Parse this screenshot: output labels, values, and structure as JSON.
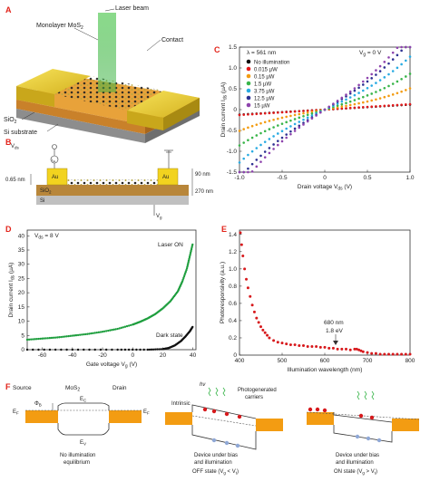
{
  "panels": {
    "A": {
      "label": "A",
      "annotations": {
        "laser": "Laser beam",
        "mos2": "Monolayer MoS",
        "mos2_sub": "2",
        "contact": "Contact",
        "sio2": "SiO",
        "sio2_sub": "2",
        "si": "Si substrate"
      }
    },
    "B": {
      "label": "B",
      "vds": "V",
      "vds_sub": "ds",
      "ids": "I",
      "ids_sub": "ds",
      "au_left": "Au",
      "au_right": "Au",
      "sio2": "SiO",
      "sio2_sub": "2",
      "si": "Si",
      "dim_065": "0.65 nm",
      "dim_90": "90 nm",
      "dim_270": "270 nm",
      "vg": "V",
      "vg_sub": "g"
    },
    "C": {
      "label": "C",
      "condition_lambda": "λ = 561 nm",
      "condition_vg": "V",
      "condition_vg_sub": "g",
      "condition_vg_val": " = 0 V"
    },
    "D": {
      "label": "D",
      "condition": "V",
      "condition_sub": "ds",
      "condition_val": " = 8 V",
      "laser_on": "Laser ON",
      "dark": "Dark state"
    },
    "E": {
      "label": "E",
      "peak_line1": "680 nm",
      "peak_line2": "1.8 eV"
    },
    "F": {
      "label": "F",
      "source": "Source",
      "mos2": "MoS",
      "mos2_sub": "2",
      "drain": "Drain",
      "phi": "Φ",
      "phi_sub": "B",
      "ec": "E",
      "ec_sub": "C",
      "ev": "E",
      "ev_sub": "V",
      "ef": "E",
      "ef_sub": "F",
      "ef2": "E",
      "ef2_sub": "F",
      "hv": "hν",
      "intrinsic": "Intrinsic",
      "photogen1": "Photogenerated",
      "photogen2": "carriers",
      "cap1_l1": "No illumination",
      "cap1_l2": "equilibrium",
      "cap2_l1": "Device under bias",
      "cap2_l2": "and illumination",
      "cap2_l3": "OFF state (V",
      "cap2_l3_sub": "g",
      "cap2_l3_rest": " < V",
      "cap2_l3_sub2": "t",
      "cap2_l3_end": ")",
      "cap3_l1": "Device under bias",
      "cap3_l2": "and illumination",
      "cap3_l3": "ON state (V",
      "cap3_l3_sub": "g",
      "cap3_l3_rest": " > V",
      "cap3_l3_sub2": "t",
      "cap3_l3_end": ")"
    }
  },
  "chart_data": [
    {
      "panel": "C",
      "type": "line",
      "xlabel": "Drain voltage V",
      "xlabel_sub": "ds",
      "xlabel_unit": " (V)",
      "ylabel": "Drain current I",
      "ylabel_sub": "ds",
      "ylabel_unit": " (µA)",
      "xlim": [
        -1.0,
        1.0
      ],
      "ylim": [
        -1.5,
        1.5
      ],
      "xticks": [
        "-1.0",
        "-0.5",
        "0",
        "0.5",
        "1.0"
      ],
      "yticks": [
        "-1.5",
        "-1.0",
        "-0.5",
        "0",
        "0.5",
        "1.0",
        "1.5"
      ],
      "xtick_values": [
        -1.0,
        -0.5,
        0,
        0.5,
        1.0
      ],
      "ytick_values": [
        -1.5,
        -1.0,
        -0.5,
        0,
        0.5,
        1.0,
        1.5
      ],
      "series": [
        {
          "name": "No illumination",
          "color": "#111111",
          "slope": 0.12
        },
        {
          "name": "0.015 µW",
          "color": "#e31a1c",
          "slope": 0.13
        },
        {
          "name": "0.15 µW",
          "color": "#f39c12",
          "slope": 0.35
        },
        {
          "name": "1.5 µW",
          "color": "#39b54a",
          "slope": 0.62
        },
        {
          "name": "3.75 µW",
          "color": "#29abe2",
          "slope": 0.95
        },
        {
          "name": "12.5 µW",
          "color": "#2e3192",
          "slope": 1.25
        },
        {
          "name": "15 µW",
          "color": "#8e44ad",
          "slope": 1.4
        }
      ]
    },
    {
      "panel": "D",
      "type": "scatter",
      "xlabel": "Gate voltage V",
      "xlabel_sub": "g",
      "xlabel_unit": " (V)",
      "ylabel": "Drain current I",
      "ylabel_sub": "ds",
      "ylabel_unit": " (µA)",
      "xlim": [
        -70,
        42
      ],
      "ylim": [
        0,
        42
      ],
      "xticks": [
        "-60",
        "-40",
        "-20",
        "0",
        "20",
        "40"
      ],
      "yticks": [
        "0",
        "5",
        "10",
        "15",
        "20",
        "25",
        "30",
        "35",
        "40"
      ],
      "xtick_values": [
        -60,
        -40,
        -20,
        0,
        20,
        40
      ],
      "ytick_values": [
        0,
        5,
        10,
        15,
        20,
        25,
        30,
        35,
        40
      ],
      "series": [
        {
          "name": "Laser ON",
          "color": "#1e9e3e",
          "x": [
            -70,
            -60,
            -50,
            -40,
            -30,
            -20,
            -10,
            0,
            5,
            10,
            15,
            20,
            25,
            30,
            33,
            36,
            38,
            40
          ],
          "y": [
            3.5,
            3.9,
            4.3,
            4.9,
            5.5,
            6.3,
            7.3,
            8.8,
            9.8,
            11.0,
            12.5,
            14.5,
            17.0,
            20.5,
            24.0,
            28.5,
            33.0,
            37.5
          ]
        },
        {
          "name": "Dark state",
          "color": "#111111",
          "x": [
            -70,
            -40,
            -10,
            10,
            20,
            24,
            28,
            32,
            35,
            38,
            40
          ],
          "y": [
            0,
            0,
            0,
            0,
            0.2,
            0.6,
            1.5,
            3.0,
            4.6,
            6.5,
            8.2
          ]
        }
      ]
    },
    {
      "panel": "E",
      "type": "scatter",
      "xlabel": "Illumination wavelength (nm)",
      "ylabel": "Photoresponsivity (a.u.)",
      "xlim": [
        400,
        800
      ],
      "ylim": [
        0,
        1.45
      ],
      "xticks": [
        "400",
        "500",
        "600",
        "700",
        "800"
      ],
      "yticks": [
        "0",
        "0.2",
        "0.4",
        "0.6",
        "0.8",
        "1.0",
        "1.2",
        "1.4"
      ],
      "xtick_values": [
        400,
        500,
        600,
        700,
        800
      ],
      "ytick_values": [
        0,
        0.2,
        0.4,
        0.6,
        0.8,
        1.0,
        1.2,
        1.4
      ],
      "series": [
        {
          "name": "",
          "color": "#d7191c",
          "x": [
            402,
            405,
            408,
            412,
            416,
            420,
            425,
            430,
            435,
            440,
            445,
            450,
            455,
            460,
            465,
            470,
            480,
            490,
            500,
            510,
            520,
            530,
            540,
            550,
            560,
            570,
            580,
            590,
            600,
            610,
            620,
            630,
            640,
            650,
            660,
            670,
            675,
            680,
            685,
            690,
            700,
            710,
            720,
            730,
            740,
            750,
            760,
            770,
            780,
            790,
            800
          ],
          "y": [
            1.42,
            1.28,
            1.15,
            1.0,
            0.88,
            0.78,
            0.68,
            0.58,
            0.5,
            0.43,
            0.38,
            0.33,
            0.29,
            0.26,
            0.23,
            0.2,
            0.17,
            0.15,
            0.14,
            0.13,
            0.12,
            0.12,
            0.11,
            0.11,
            0.1,
            0.1,
            0.1,
            0.09,
            0.09,
            0.08,
            0.08,
            0.07,
            0.07,
            0.07,
            0.06,
            0.07,
            0.07,
            0.06,
            0.05,
            0.04,
            0.03,
            0.02,
            0.02,
            0.01,
            0.01,
            0.01,
            0.01,
            0.01,
            0.01,
            0.01,
            0.01
          ]
        }
      ]
    }
  ]
}
